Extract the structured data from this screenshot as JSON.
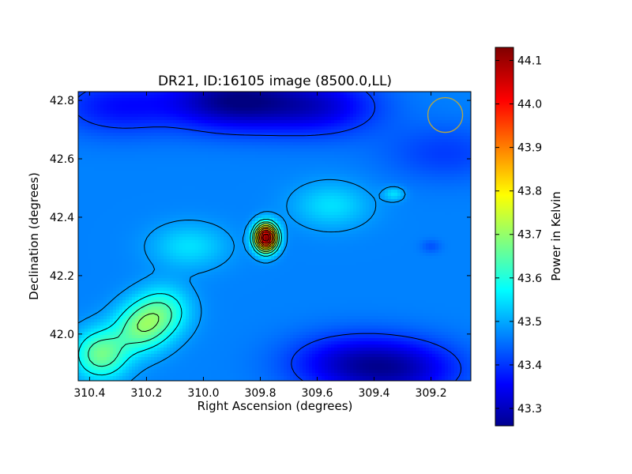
{
  "chart_data": {
    "type": "heatmap",
    "title": "DR21, ID:16105 image (8500.0,LL)",
    "xlabel": "Right Ascension (degrees)",
    "ylabel": "Declination (degrees)",
    "colorbar_label": "Power in Kelvin",
    "xlim": [
      310.44,
      309.06
    ],
    "ylim": [
      41.84,
      42.83
    ],
    "x_ticks": [
      {
        "value": 310.4,
        "label": "310.4"
      },
      {
        "value": 310.2,
        "label": "310.2"
      },
      {
        "value": 310.0,
        "label": "310.0"
      },
      {
        "value": 309.8,
        "label": "309.8"
      },
      {
        "value": 309.6,
        "label": "309.6"
      },
      {
        "value": 309.4,
        "label": "309.4"
      },
      {
        "value": 309.2,
        "label": "309.2"
      }
    ],
    "y_ticks": [
      {
        "value": 42.0,
        "label": "42.0"
      },
      {
        "value": 42.2,
        "label": "42.2"
      },
      {
        "value": 42.4,
        "label": "42.4"
      },
      {
        "value": 42.6,
        "label": "42.6"
      },
      {
        "value": 42.8,
        "label": "42.8"
      }
    ],
    "colorbar_range": [
      43.26,
      44.13
    ],
    "colorbar_ticks": [
      {
        "value": 43.3,
        "label": "43.3"
      },
      {
        "value": 43.4,
        "label": "43.4"
      },
      {
        "value": 43.5,
        "label": "43.5"
      },
      {
        "value": 43.6,
        "label": "43.6"
      },
      {
        "value": 43.7,
        "label": "43.7"
      },
      {
        "value": 43.8,
        "label": "43.8"
      },
      {
        "value": 43.9,
        "label": "43.9"
      },
      {
        "value": 44.0,
        "label": "44.0"
      },
      {
        "value": 44.1,
        "label": "44.1"
      }
    ],
    "colormap": "jet",
    "background_level": 43.48,
    "peak": {
      "ra": 309.78,
      "dec": 42.33,
      "value": 44.12
    },
    "features": [
      {
        "kind": "source",
        "ra": 309.78,
        "dec": 42.33,
        "value": 44.12
      },
      {
        "kind": "ridge",
        "ra": 309.55,
        "dec": 42.44,
        "value": 43.56
      },
      {
        "kind": "ridge",
        "ra": 310.05,
        "dec": 42.3,
        "value": 43.56
      },
      {
        "kind": "warm-patch",
        "ra": 310.22,
        "dec": 42.02,
        "value": 43.66
      },
      {
        "kind": "warm-patch",
        "ra": 310.36,
        "dec": 41.93,
        "value": 43.68
      },
      {
        "kind": "warm-patch",
        "ra": 310.14,
        "dec": 42.08,
        "value": 43.62
      },
      {
        "kind": "knot",
        "ra": 309.33,
        "dec": 42.48,
        "value": 43.56
      },
      {
        "kind": "knot",
        "ra": 309.2,
        "dec": 42.3,
        "value": 43.44
      },
      {
        "kind": "cold-region",
        "ra": 309.3,
        "dec": 41.88,
        "value": 43.34
      },
      {
        "kind": "cold-region",
        "ra": 309.5,
        "dec": 41.9,
        "value": 43.36
      },
      {
        "kind": "cold-region",
        "ra": 309.9,
        "dec": 42.8,
        "value": 43.28
      },
      {
        "kind": "cold-region",
        "ra": 309.6,
        "dec": 42.78,
        "value": 43.34
      },
      {
        "kind": "cold-region",
        "ra": 310.3,
        "dec": 42.78,
        "value": 43.38
      },
      {
        "kind": "cold-region",
        "ra": 309.15,
        "dec": 42.62,
        "value": 43.42
      }
    ],
    "contour_levels": [
      43.42,
      43.5,
      43.58,
      43.64,
      43.7,
      43.76,
      43.82,
      43.88,
      43.94,
      44.0,
      44.06
    ],
    "beam": {
      "ra": 309.15,
      "dec": 42.75,
      "color": "#b5a642"
    },
    "grid": false,
    "legend": "none"
  }
}
